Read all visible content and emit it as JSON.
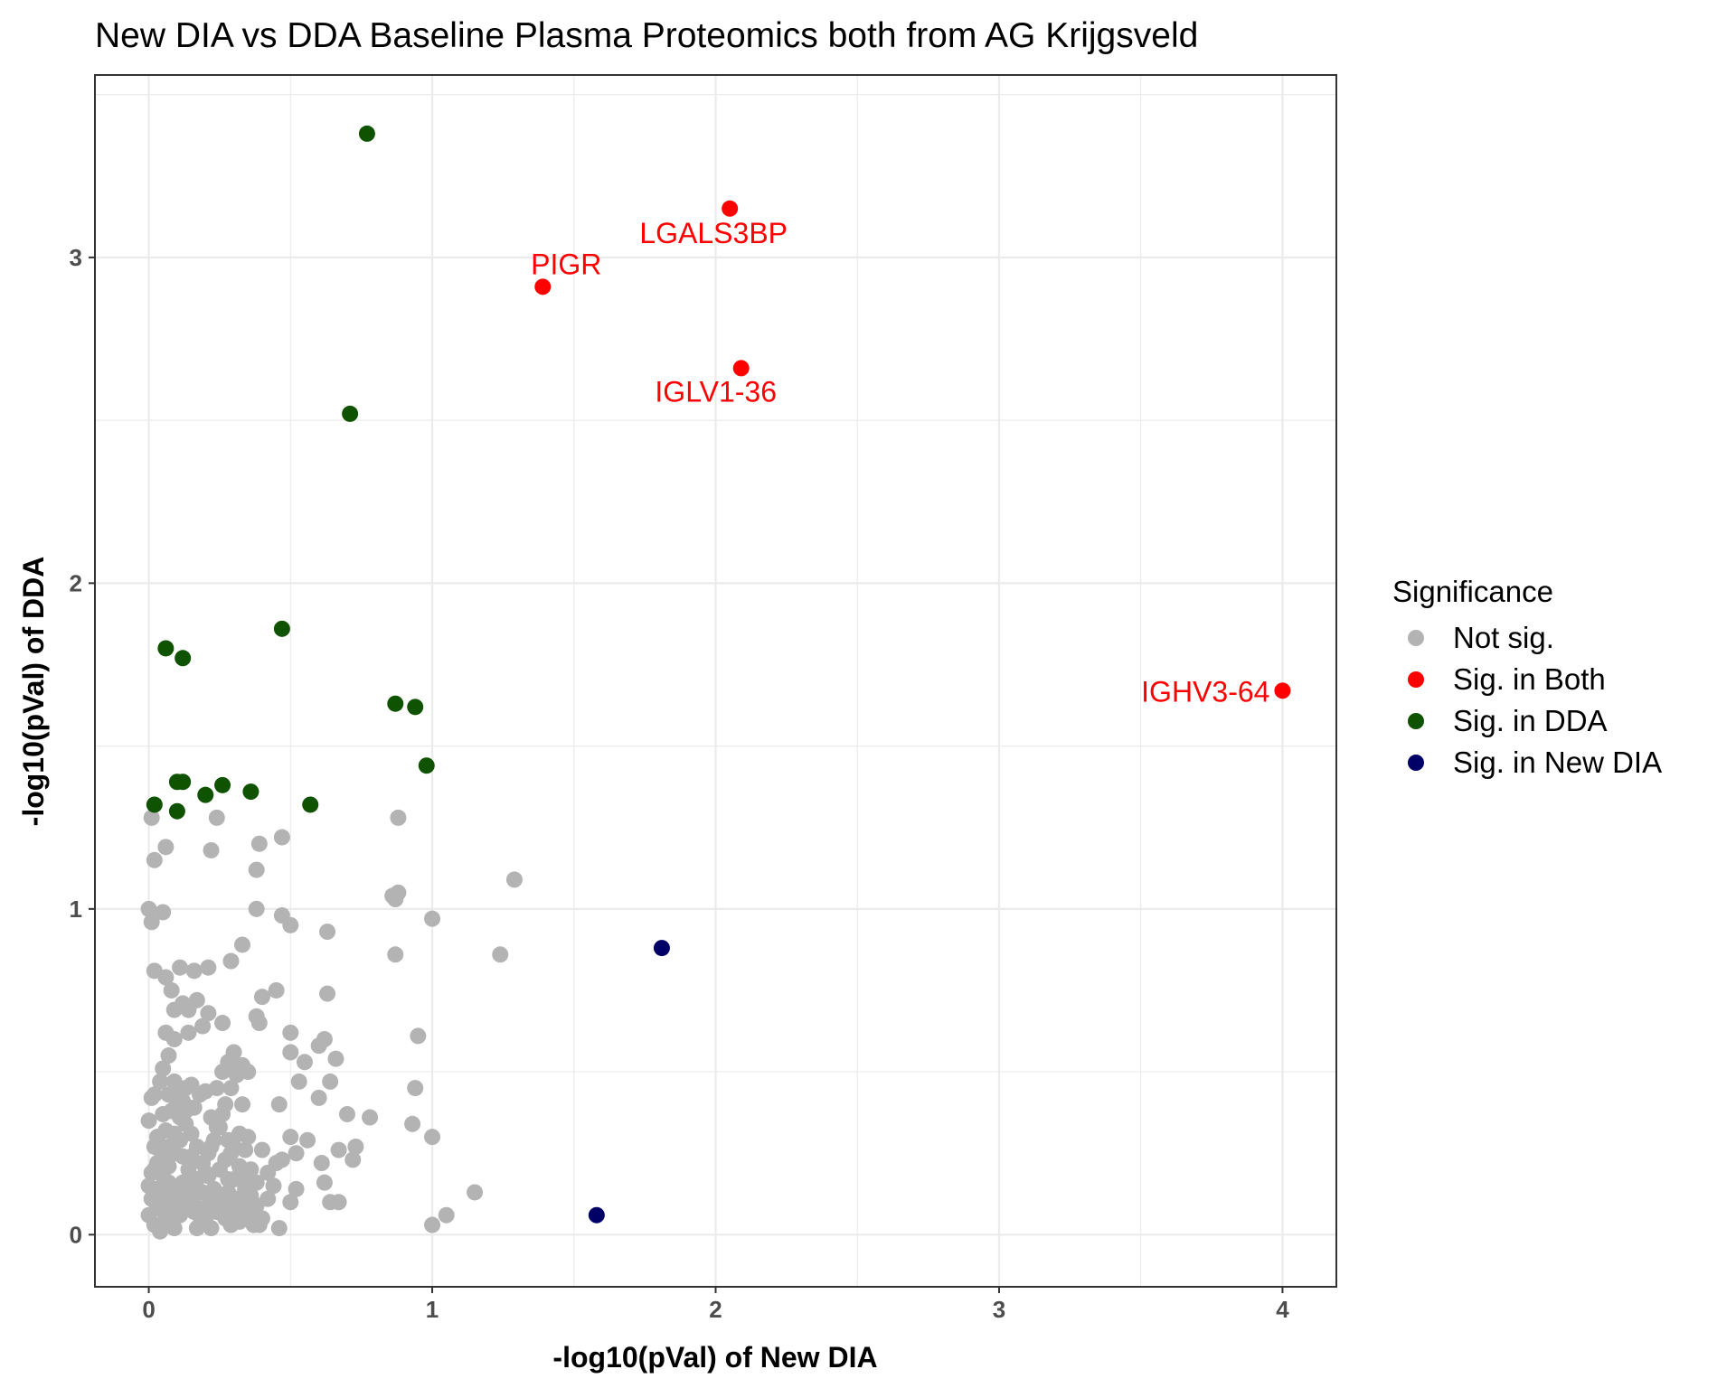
{
  "chart_data": {
    "type": "scatter",
    "title": "New DIA vs DDA Baseline Plasma Proteomics both from AG Krijgsveld",
    "xlabel": "-log10(pVal) of New DIA",
    "ylabel": "-log10(pVal) of DDA",
    "xlim": [
      -0.19,
      4.19
    ],
    "ylim": [
      -0.16,
      3.56
    ],
    "x_ticks": [
      0,
      1,
      2,
      3,
      4
    ],
    "y_ticks": [
      0,
      1,
      2,
      3
    ],
    "x_tick_labels": [
      "0",
      "1",
      "2",
      "3",
      "4"
    ],
    "y_tick_labels": [
      "0",
      "1",
      "2",
      "3"
    ],
    "grid": true,
    "legend": {
      "title": "Significance",
      "position": "right"
    },
    "series": [
      {
        "name": "Not sig.",
        "color": "#b3b3b3",
        "points": [
          [
            0.01,
            1.28
          ],
          [
            0.02,
            1.15
          ],
          [
            0.06,
            1.19
          ],
          [
            0.0,
            1.0
          ],
          [
            0.01,
            0.96
          ],
          [
            0.05,
            0.99
          ],
          [
            0.02,
            0.81
          ],
          [
            0.06,
            0.79
          ],
          [
            0.11,
            0.82
          ],
          [
            0.16,
            0.81
          ],
          [
            0.08,
            0.75
          ],
          [
            0.12,
            0.71
          ],
          [
            0.17,
            0.72
          ],
          [
            0.09,
            0.69
          ],
          [
            0.14,
            0.69
          ],
          [
            0.21,
            0.82
          ],
          [
            0.22,
            1.18
          ],
          [
            0.24,
            1.28
          ],
          [
            0.29,
            0.84
          ],
          [
            0.33,
            0.89
          ],
          [
            0.38,
            1.12
          ],
          [
            0.39,
            1.2
          ],
          [
            0.47,
            1.22
          ],
          [
            0.38,
            1.0
          ],
          [
            0.47,
            0.98
          ],
          [
            0.5,
            0.95
          ],
          [
            0.63,
            0.93
          ],
          [
            0.45,
            0.75
          ],
          [
            0.4,
            0.73
          ],
          [
            0.39,
            0.65
          ],
          [
            0.38,
            0.67
          ],
          [
            0.63,
            0.74
          ],
          [
            0.5,
            0.62
          ],
          [
            0.6,
            0.58
          ],
          [
            0.62,
            0.6
          ],
          [
            0.66,
            0.54
          ],
          [
            0.55,
            0.53
          ],
          [
            0.5,
            0.56
          ],
          [
            0.53,
            0.47
          ],
          [
            0.6,
            0.42
          ],
          [
            0.64,
            0.47
          ],
          [
            0.7,
            0.37
          ],
          [
            0.78,
            0.36
          ],
          [
            0.86,
            1.04
          ],
          [
            0.88,
            1.05
          ],
          [
            0.87,
            1.03
          ],
          [
            0.87,
            0.86
          ],
          [
            0.88,
            1.28
          ],
          [
            1.0,
            0.97
          ],
          [
            1.29,
            1.09
          ],
          [
            1.24,
            0.86
          ],
          [
            0.95,
            0.61
          ],
          [
            0.94,
            0.45
          ],
          [
            0.93,
            0.34
          ],
          [
            1.0,
            0.3
          ],
          [
            0.73,
            0.27
          ],
          [
            0.72,
            0.23
          ],
          [
            0.67,
            0.26
          ],
          [
            0.61,
            0.22
          ],
          [
            0.56,
            0.29
          ],
          [
            0.62,
            0.16
          ],
          [
            0.64,
            0.1
          ],
          [
            0.67,
            0.1
          ],
          [
            1.15,
            0.13
          ],
          [
            1.05,
            0.06
          ],
          [
            1.0,
            0.03
          ],
          [
            0.46,
            0.4
          ],
          [
            0.5,
            0.3
          ],
          [
            0.52,
            0.25
          ],
          [
            0.46,
            0.02
          ],
          [
            0.5,
            0.1
          ],
          [
            0.52,
            0.14
          ],
          [
            0.45,
            0.22
          ],
          [
            0.47,
            0.23
          ],
          [
            0.42,
            0.19
          ],
          [
            0.4,
            0.26
          ],
          [
            0.39,
            0.03
          ],
          [
            0.36,
            0.12
          ],
          [
            0.35,
            0.3
          ],
          [
            0.33,
            0.4
          ],
          [
            0.3,
            0.51
          ],
          [
            0.28,
            0.53
          ],
          [
            0.3,
            0.56
          ],
          [
            0.26,
            0.65
          ],
          [
            0.21,
            0.68
          ],
          [
            0.19,
            0.64
          ],
          [
            0.14,
            0.62
          ],
          [
            0.09,
            0.6
          ],
          [
            0.06,
            0.62
          ],
          [
            0.07,
            0.55
          ],
          [
            0.05,
            0.51
          ],
          [
            0.04,
            0.47
          ],
          [
            0.02,
            0.43
          ],
          [
            0.01,
            0.42
          ],
          [
            0.0,
            0.35
          ],
          [
            0.02,
            0.27
          ],
          [
            0.03,
            0.3
          ],
          [
            0.05,
            0.37
          ],
          [
            0.07,
            0.43
          ],
          [
            0.09,
            0.47
          ],
          [
            0.1,
            0.44
          ],
          [
            0.12,
            0.41
          ],
          [
            0.13,
            0.45
          ],
          [
            0.15,
            0.46
          ],
          [
            0.16,
            0.39
          ],
          [
            0.18,
            0.43
          ],
          [
            0.2,
            0.44
          ],
          [
            0.22,
            0.36
          ],
          [
            0.24,
            0.33
          ],
          [
            0.26,
            0.37
          ],
          [
            0.28,
            0.29
          ],
          [
            0.3,
            0.27
          ],
          [
            0.32,
            0.31
          ],
          [
            0.34,
            0.26
          ],
          [
            0.36,
            0.2
          ],
          [
            0.38,
            0.16
          ],
          [
            0.33,
            0.1
          ],
          [
            0.31,
            0.07
          ],
          [
            0.29,
            0.03
          ],
          [
            0.27,
            0.05
          ],
          [
            0.25,
            0.11
          ],
          [
            0.23,
            0.14
          ],
          [
            0.21,
            0.18
          ],
          [
            0.19,
            0.22
          ],
          [
            0.17,
            0.27
          ],
          [
            0.15,
            0.31
          ],
          [
            0.13,
            0.34
          ],
          [
            0.11,
            0.29
          ],
          [
            0.09,
            0.25
          ],
          [
            0.07,
            0.21
          ],
          [
            0.05,
            0.18
          ],
          [
            0.03,
            0.14
          ],
          [
            0.01,
            0.11
          ],
          [
            0.0,
            0.06
          ],
          [
            0.02,
            0.03
          ],
          [
            0.04,
            0.01
          ],
          [
            0.06,
            0.05
          ],
          [
            0.08,
            0.09
          ],
          [
            0.1,
            0.13
          ],
          [
            0.12,
            0.16
          ],
          [
            0.14,
            0.2
          ],
          [
            0.16,
            0.12
          ],
          [
            0.18,
            0.08
          ],
          [
            0.2,
            0.04
          ],
          [
            0.22,
            0.02
          ],
          [
            0.24,
            0.07
          ],
          [
            0.26,
            0.09
          ],
          [
            0.28,
            0.13
          ],
          [
            0.3,
            0.17
          ],
          [
            0.32,
            0.21
          ],
          [
            0.34,
            0.14
          ],
          [
            0.36,
            0.06
          ],
          [
            0.38,
            0.09
          ],
          [
            0.4,
            0.05
          ],
          [
            0.42,
            0.11
          ],
          [
            0.44,
            0.15
          ],
          [
            0.03,
            0.08
          ],
          [
            0.05,
            0.12
          ],
          [
            0.07,
            0.16
          ],
          [
            0.09,
            0.02
          ],
          [
            0.11,
            0.06
          ],
          [
            0.13,
            0.1
          ],
          [
            0.15,
            0.15
          ],
          [
            0.17,
            0.02
          ],
          [
            0.19,
            0.05
          ],
          [
            0.21,
            0.09
          ],
          [
            0.23,
            0.12
          ],
          [
            0.25,
            0.2
          ],
          [
            0.27,
            0.23
          ],
          [
            0.29,
            0.25
          ],
          [
            0.31,
            0.11
          ],
          [
            0.33,
            0.18
          ],
          [
            0.35,
            0.09
          ],
          [
            0.37,
            0.03
          ],
          [
            0.01,
            0.19
          ],
          [
            0.03,
            0.22
          ],
          [
            0.05,
            0.24
          ],
          [
            0.07,
            0.27
          ],
          [
            0.09,
            0.31
          ],
          [
            0.11,
            0.36
          ],
          [
            0.13,
            0.38
          ],
          [
            0.15,
            0.24
          ],
          [
            0.17,
            0.17
          ],
          [
            0.19,
            0.13
          ],
          [
            0.21,
            0.25
          ],
          [
            0.23,
            0.29
          ],
          [
            0.25,
            0.33
          ],
          [
            0.27,
            0.4
          ],
          [
            0.29,
            0.45
          ],
          [
            0.31,
            0.49
          ],
          [
            0.33,
            0.52
          ],
          [
            0.35,
            0.5
          ],
          [
            0.0,
            0.15
          ],
          [
            0.02,
            0.2
          ],
          [
            0.04,
            0.26
          ],
          [
            0.06,
            0.32
          ],
          [
            0.08,
            0.38
          ],
          [
            0.1,
            0.41
          ],
          [
            0.12,
            0.24
          ],
          [
            0.14,
            0.13
          ],
          [
            0.16,
            0.07
          ],
          [
            0.18,
            0.03
          ],
          [
            0.2,
            0.19
          ],
          [
            0.22,
            0.27
          ],
          [
            0.24,
            0.45
          ],
          [
            0.26,
            0.5
          ],
          [
            0.28,
            0.17
          ],
          [
            0.3,
            0.1
          ],
          [
            0.32,
            0.04
          ]
        ]
      },
      {
        "name": "Sig. in Both",
        "color": "#ff0000",
        "points": [
          [
            2.05,
            3.15
          ],
          [
            1.39,
            2.91
          ],
          [
            2.09,
            2.66
          ],
          [
            4.0,
            1.67
          ]
        ],
        "labels": [
          "LGALS3BP",
          "PIGR",
          "IGLV1-36",
          "IGHV3-64"
        ]
      },
      {
        "name": "Sig. in DDA",
        "color": "#0f5200",
        "points": [
          [
            0.77,
            3.38
          ],
          [
            0.71,
            2.52
          ],
          [
            0.47,
            1.86
          ],
          [
            0.06,
            1.8
          ],
          [
            0.12,
            1.77
          ],
          [
            0.87,
            1.63
          ],
          [
            0.94,
            1.62
          ],
          [
            0.98,
            1.44
          ],
          [
            0.1,
            1.39
          ],
          [
            0.12,
            1.39
          ],
          [
            0.26,
            1.38
          ],
          [
            0.36,
            1.36
          ],
          [
            0.2,
            1.35
          ],
          [
            0.02,
            1.32
          ],
          [
            0.57,
            1.32
          ],
          [
            0.1,
            1.3
          ]
        ]
      },
      {
        "name": "Sig. in New DIA",
        "color": "#000066",
        "points": [
          [
            1.81,
            0.88
          ],
          [
            1.58,
            0.06
          ]
        ]
      }
    ]
  }
}
